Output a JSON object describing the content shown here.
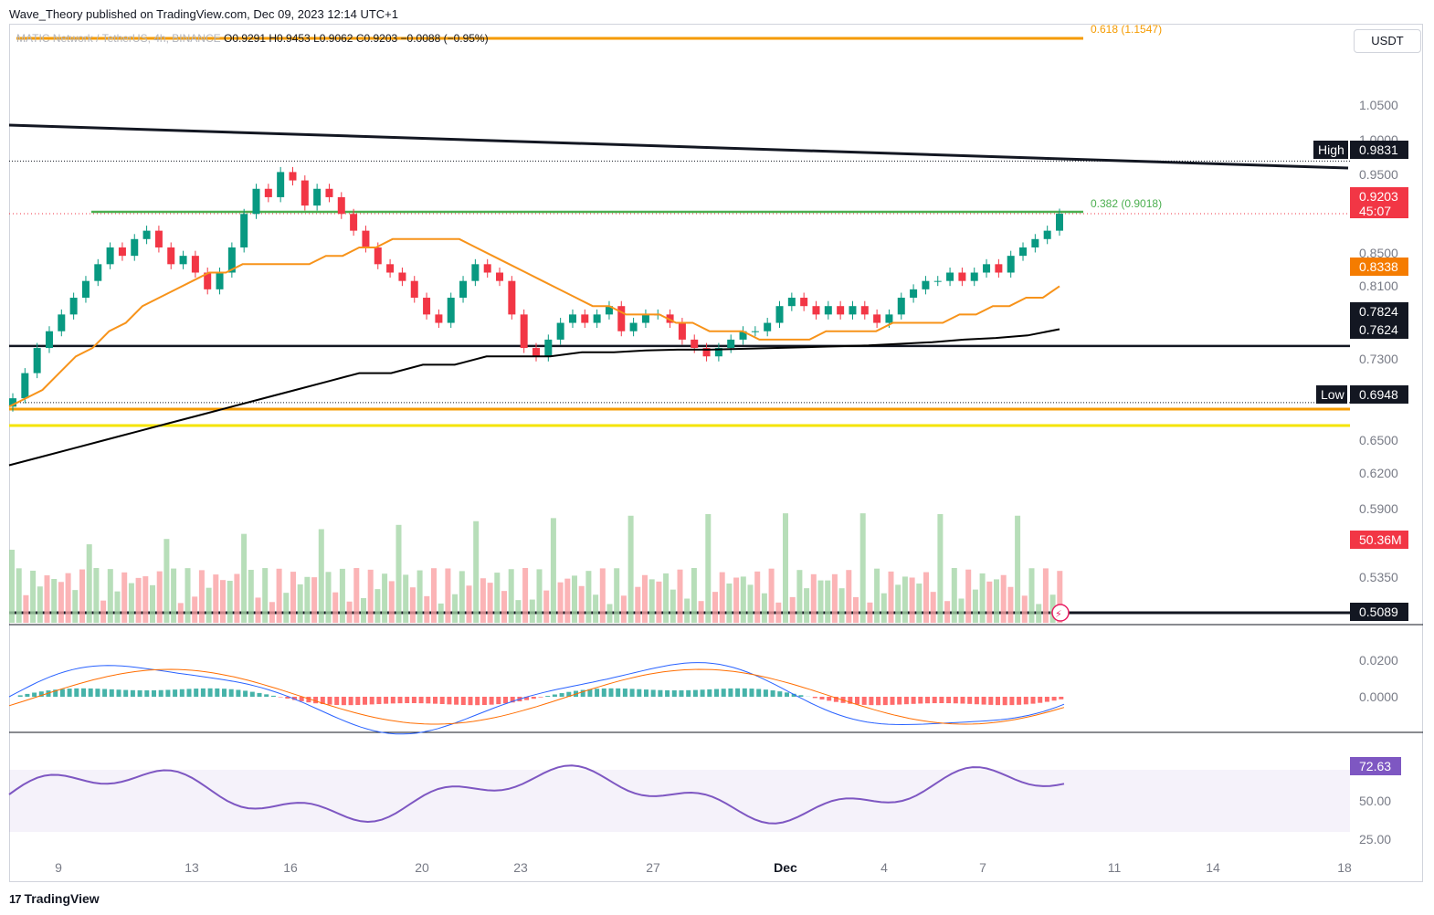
{
  "publisher": "Wave_Theory published on TradingView.com, Dec 09, 2023 12:14 UTC+1",
  "legend": {
    "symbol": "MATIC Network / TetherUS, 4h, BINANCE",
    "open": "0.9291",
    "high": "0.9453",
    "low": "0.9062",
    "close": "0.9203",
    "change": "−0.0088 (−0.95%)"
  },
  "currency": "USDT",
  "footer_brand": "TradingView",
  "colors": {
    "up": "#089981",
    "down": "#f23645",
    "ema50": "#f7931a",
    "ema200": "#000000",
    "fib_orange": "#f59b00",
    "fib_green": "#4caf50",
    "yellow": "#f5e400",
    "macd": "#2962ff",
    "signal": "#ff6d00",
    "rsi": "#7e57c2"
  },
  "chart_data": {
    "type": "candlestick",
    "timeframe": "4h",
    "price_axis_ticks": [
      "1.0500",
      "1.0000",
      "0.9500",
      "0.8500",
      "0.8100",
      "0.7300",
      "0.6500",
      "0.6200",
      "0.5900",
      "0.5350"
    ],
    "price_badges": [
      {
        "label": "High",
        "value": "0.9831"
      },
      {
        "label": "",
        "value": "0.9203",
        "sub": "45:07"
      },
      {
        "label": "",
        "value": "0.8338"
      },
      {
        "label": "",
        "value": "0.7824"
      },
      {
        "label": "",
        "value": "0.7624"
      },
      {
        "label": "Low",
        "value": "0.6948"
      },
      {
        "label": "",
        "value": "50.36M"
      },
      {
        "label": "",
        "value": "0.5089"
      }
    ],
    "fib_levels": [
      {
        "label": "0.618 (1.1547)",
        "price": 1.1547
      },
      {
        "label": "0.382 (0.9018)",
        "price": 0.9018
      }
    ],
    "horizontal_levels": [
      0.7624,
      0.683,
      0.663,
      0.5089
    ],
    "high": 0.9831,
    "low": 0.6948,
    "x_axis_labels": [
      "9",
      "13",
      "16",
      "20",
      "23",
      "27",
      "Dec",
      "4",
      "7",
      "11",
      "14",
      "18"
    ],
    "closes": [
      0.7,
      0.73,
      0.76,
      0.78,
      0.8,
      0.82,
      0.84,
      0.86,
      0.88,
      0.87,
      0.89,
      0.9,
      0.88,
      0.86,
      0.87,
      0.85,
      0.83,
      0.85,
      0.88,
      0.92,
      0.95,
      0.94,
      0.97,
      0.96,
      0.93,
      0.95,
      0.94,
      0.92,
      0.9,
      0.88,
      0.86,
      0.85,
      0.84,
      0.82,
      0.8,
      0.79,
      0.82,
      0.84,
      0.86,
      0.85,
      0.84,
      0.8,
      0.76,
      0.75,
      0.77,
      0.79,
      0.8,
      0.79,
      0.8,
      0.81,
      0.78,
      0.79,
      0.8,
      0.8,
      0.79,
      0.77,
      0.76,
      0.75,
      0.76,
      0.77,
      0.78,
      0.78,
      0.79,
      0.81,
      0.82,
      0.81,
      0.8,
      0.81,
      0.8,
      0.81,
      0.8,
      0.79,
      0.8,
      0.82,
      0.83,
      0.84,
      0.84,
      0.85,
      0.84,
      0.85,
      0.86,
      0.85,
      0.87,
      0.88,
      0.89,
      0.9,
      0.9203
    ],
    "ema50": [
      0.69,
      0.7,
      0.71,
      0.73,
      0.75,
      0.76,
      0.78,
      0.79,
      0.81,
      0.82,
      0.83,
      0.84,
      0.85,
      0.85,
      0.86,
      0.86,
      0.86,
      0.86,
      0.86,
      0.87,
      0.87,
      0.88,
      0.88,
      0.89,
      0.89,
      0.89,
      0.89,
      0.89,
      0.88,
      0.87,
      0.86,
      0.85,
      0.84,
      0.83,
      0.82,
      0.81,
      0.81,
      0.8,
      0.8,
      0.8,
      0.79,
      0.79,
      0.78,
      0.78,
      0.78,
      0.77,
      0.77,
      0.77,
      0.77,
      0.78,
      0.78,
      0.78,
      0.78,
      0.79,
      0.79,
      0.79,
      0.79,
      0.8,
      0.8,
      0.81,
      0.81,
      0.82,
      0.82,
      0.8338
    ],
    "ema200": [
      0.62,
      0.63,
      0.64,
      0.65,
      0.66,
      0.67,
      0.68,
      0.69,
      0.7,
      0.71,
      0.72,
      0.73,
      0.73,
      0.74,
      0.74,
      0.75,
      0.75,
      0.75,
      0.755,
      0.755,
      0.757,
      0.758,
      0.758,
      0.759,
      0.76,
      0.761,
      0.762,
      0.763,
      0.765,
      0.767,
      0.77,
      0.772,
      0.775,
      0.7824
    ],
    "rsi": {
      "value": "72.63",
      "ticks": [
        "50.00",
        "25.00"
      ]
    },
    "macd_ticks": [
      "0.0200",
      "0.0000"
    ]
  }
}
